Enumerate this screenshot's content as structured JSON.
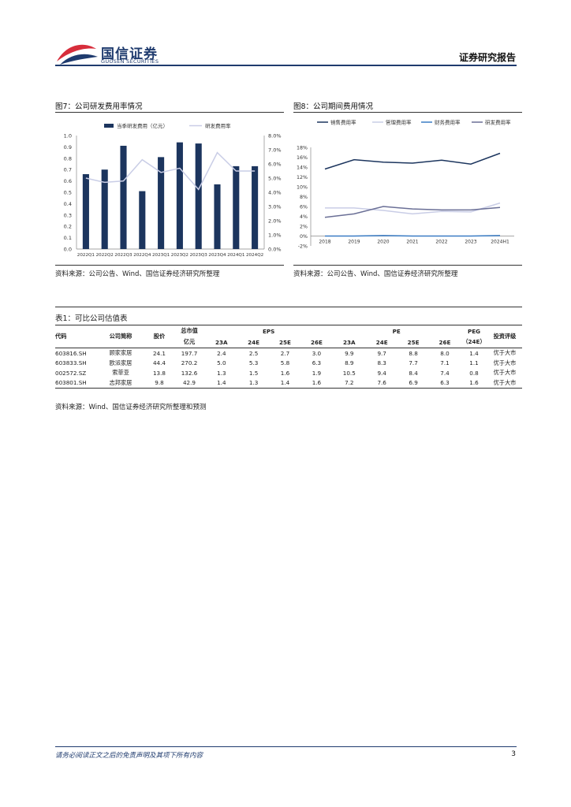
{
  "header": {
    "brand_cn": "国信证券",
    "brand_en": "GUOSEN SECURITIES",
    "report_type": "证券研究报告"
  },
  "figure7": {
    "title": "图7：公司研发费用率情况",
    "source": "资料来源：公司公告、Wind、国信证券经济研究所整理"
  },
  "figure8": {
    "title": "图8：公司期间费用情况",
    "source": "资料来源：公司公告、Wind、国信证券经济研究所整理"
  },
  "chart_data": [
    {
      "type": "bar",
      "categories": [
        "2022Q1",
        "2022Q2",
        "2022Q3",
        "2022Q4",
        "2023Q1",
        "2023Q2",
        "2023Q3",
        "2023Q4",
        "2024Q1",
        "2024Q2"
      ],
      "series": [
        {
          "name": "当季研发费用（亿元）",
          "type": "bar",
          "axis": "left",
          "color": "#1c355e",
          "values": [
            0.66,
            0.7,
            0.91,
            0.51,
            0.81,
            0.94,
            0.93,
            0.57,
            0.73,
            0.73
          ]
        },
        {
          "name": "研发费用率",
          "type": "line",
          "axis": "right",
          "color": "#c9cde6",
          "values": [
            0.05,
            0.047,
            0.048,
            0.063,
            0.054,
            0.057,
            0.042,
            0.068,
            0.055,
            0.055
          ]
        }
      ],
      "ylim_left": [
        0,
        1.0
      ],
      "yticks_left": [
        "1.0",
        "0.9",
        "0.8",
        "0.7",
        "0.6",
        "0.5",
        "0.4",
        "0.3",
        "0.2",
        "0.1",
        "0.0"
      ],
      "ylim_right": [
        0,
        0.08
      ],
      "yticks_right": [
        "8.0%",
        "7.0%",
        "6.0%",
        "5.0%",
        "4.0%",
        "3.0%",
        "2.0%",
        "1.0%",
        "0.0%"
      ],
      "legend": "top-center"
    },
    {
      "type": "line",
      "categories": [
        "2018",
        "2019",
        "2020",
        "2021",
        "2022",
        "2023",
        "2024H1"
      ],
      "series": [
        {
          "name": "销售费用率",
          "color": "#1c355e",
          "values": [
            0.136,
            0.155,
            0.15,
            0.148,
            0.154,
            0.146,
            0.168
          ]
        },
        {
          "name": "管理费用率",
          "color": "#c9cde6",
          "values": [
            0.057,
            0.057,
            0.052,
            0.045,
            0.05,
            0.049,
            0.067
          ]
        },
        {
          "name": "财务费用率",
          "color": "#3a7cc4",
          "values": [
            0.0,
            0.0,
            0.001,
            0.0,
            0.0,
            0.0,
            0.001
          ]
        },
        {
          "name": "研发费用率",
          "color": "#6a6f96",
          "values": [
            0.038,
            0.045,
            0.06,
            0.055,
            0.053,
            0.053,
            0.058
          ]
        }
      ],
      "ylim": [
        -0.02,
        0.18
      ],
      "yticks": [
        "18%",
        "16%",
        "14%",
        "12%",
        "10%",
        "8%",
        "6%",
        "4%",
        "2%",
        "0%",
        "-2%"
      ],
      "legend": "top"
    }
  ],
  "table": {
    "title": "表1：可比公司估值表",
    "headers": {
      "code": "代码",
      "name": "公司简称",
      "price": "股价",
      "mcap_top": "总市值",
      "mcap_unit": "亿元",
      "eps": "EPS",
      "pe": "PE",
      "peg": "PEG",
      "peg_sub": "（24E）",
      "rating": "投资评级",
      "years": [
        "23A",
        "24E",
        "25E",
        "26E",
        "23A",
        "24E",
        "25E",
        "26E"
      ]
    },
    "rows": [
      [
        "603816.SH",
        "顾家家居",
        "24.1",
        "197.7",
        "2.4",
        "2.5",
        "2.7",
        "3.0",
        "9.9",
        "9.7",
        "8.8",
        "8.0",
        "1.4",
        "优于大市"
      ],
      [
        "603833.SH",
        "欧派家居",
        "44.4",
        "270.2",
        "5.0",
        "5.3",
        "5.8",
        "6.3",
        "8.9",
        "8.3",
        "7.7",
        "7.1",
        "1.1",
        "优于大市"
      ],
      [
        "002572.SZ",
        "索菲亚",
        "13.8",
        "132.6",
        "1.3",
        "1.5",
        "1.6",
        "1.9",
        "10.5",
        "9.4",
        "8.4",
        "7.4",
        "0.8",
        "优于大市"
      ],
      [
        "603801.SH",
        "志邦家居",
        "9.8",
        "42.9",
        "1.4",
        "1.3",
        "1.4",
        "1.6",
        "7.2",
        "7.6",
        "6.9",
        "6.3",
        "1.6",
        "优于大市"
      ]
    ],
    "source": "资料来源：Wind、国信证券经济研究所整理和预测"
  },
  "footer": {
    "disclaimer": "请务必阅读正文之后的免责声明及其项下所有内容",
    "page_number": "3"
  }
}
